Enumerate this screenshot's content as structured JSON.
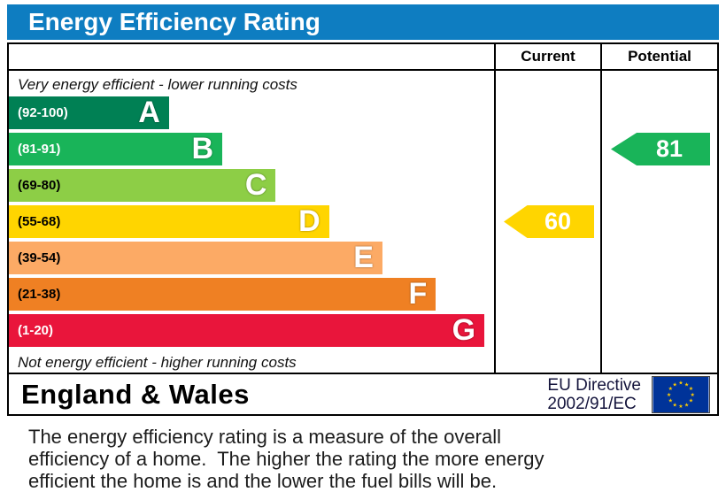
{
  "title": "Energy Efficiency Rating",
  "columns": {
    "current": "Current",
    "potential": "Potential"
  },
  "top_label": "Very energy efficient - lower running costs",
  "bottom_label": "Not energy efficient - higher running costs",
  "bands": [
    {
      "letter": "A",
      "range": "(92-100)",
      "color": "#008054",
      "range_color": "#ffffff",
      "width_pct": 33
    },
    {
      "letter": "B",
      "range": "(81-91)",
      "color": "#19b459",
      "range_color": "#ffffff",
      "width_pct": 44
    },
    {
      "letter": "C",
      "range": "(69-80)",
      "color": "#8dce46",
      "range_color": "#000000",
      "width_pct": 55
    },
    {
      "letter": "D",
      "range": "(55-68)",
      "color": "#ffd500",
      "range_color": "#000000",
      "width_pct": 66
    },
    {
      "letter": "E",
      "range": "(39-54)",
      "color": "#fcaa65",
      "range_color": "#000000",
      "width_pct": 77
    },
    {
      "letter": "F",
      "range": "(21-38)",
      "color": "#ef8023",
      "range_color": "#000000",
      "width_pct": 88
    },
    {
      "letter": "G",
      "range": "(1-20)",
      "color": "#e9153b",
      "range_color": "#ffffff",
      "width_pct": 98
    }
  ],
  "current": {
    "value": "60",
    "band": "D",
    "color": "#ffd500"
  },
  "potential": {
    "value": "81",
    "band": "B",
    "color": "#19b459"
  },
  "footer": {
    "region": "England & Wales",
    "directive_line1": "EU Directive",
    "directive_line2": "2002/91/EC"
  },
  "description_lines": [
    "The energy efficiency rating is a measure of the overall",
    "efficiency of a home.  The higher the rating the more energy",
    "efficient the home is and the lower the fuel bills will be."
  ],
  "colors": {
    "title_bar": "#0e7dc1",
    "border": "#000000",
    "current_arrow": "#ffd500",
    "potential_arrow": "#19b459",
    "eu_flag_bg": "#003399",
    "eu_flag_stars": "#ffcc00"
  },
  "chart_data": {
    "type": "bar",
    "title": "Energy Efficiency Rating",
    "categories": [
      "A (92-100)",
      "B (81-91)",
      "C (69-80)",
      "D (55-68)",
      "E (39-54)",
      "F (21-38)",
      "G (1-20)"
    ],
    "band_colors": [
      "#008054",
      "#19b459",
      "#8dce46",
      "#ffd500",
      "#fcaa65",
      "#ef8023",
      "#e9153b"
    ],
    "bar_lengths_pct": [
      33,
      44,
      55,
      66,
      77,
      88,
      98
    ],
    "series": [
      {
        "name": "Current",
        "value": 60,
        "band": "D"
      },
      {
        "name": "Potential",
        "value": 81,
        "band": "B"
      }
    ],
    "scale": [
      1,
      100
    ],
    "top_annotation": "Very energy efficient - lower running costs",
    "bottom_annotation": "Not energy efficient - higher running costs",
    "legend_position": "none",
    "grid": false
  }
}
